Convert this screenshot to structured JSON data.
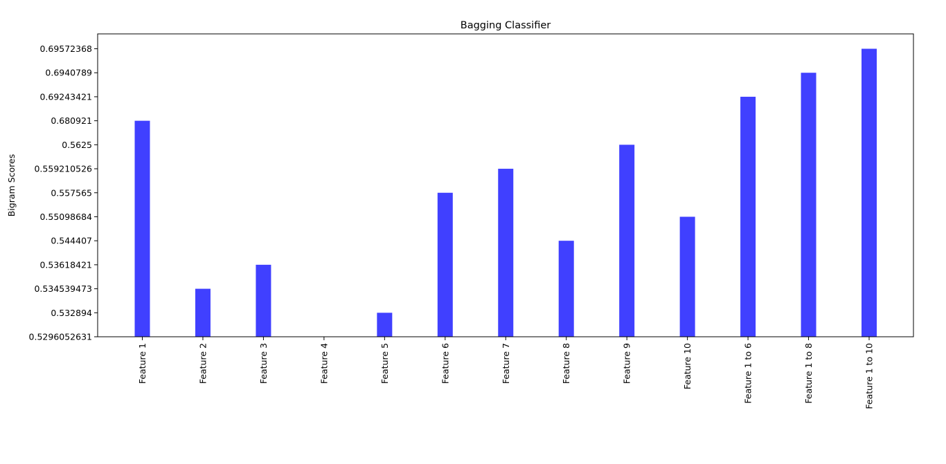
{
  "chart_data": {
    "type": "bar",
    "title": "Bagging Classifier",
    "xlabel": "",
    "ylabel": "Bigram Scores",
    "categories": [
      "Feature 1",
      "Feature 2",
      "Feature 3",
      "Feature 4",
      "Feature 5",
      "Feature 6",
      "Feature 7",
      "Feature 8",
      "Feature 9",
      "Feature 10",
      "Feature 1 to 6",
      "Feature 1 to 8",
      "Feature 1 to 10"
    ],
    "y_tick_labels": [
      "0.5296052631",
      "0.532894",
      "0.534539473",
      "0.53618421",
      "0.544407",
      "0.55098684",
      "0.557565",
      "0.559210526",
      "0.5625",
      "0.680921",
      "0.69243421",
      "0.6940789",
      "0.69572368"
    ],
    "values": [
      "0.680921",
      "0.534539473",
      "0.53618421",
      "0.5296052631",
      "0.532894",
      "0.557565",
      "0.559210526",
      "0.544407",
      "0.5625",
      "0.55098684",
      "0.69243421",
      "0.6940789",
      "0.69572368"
    ],
    "scale": "categorical",
    "grid": false,
    "bar_color": "#4040ff"
  }
}
